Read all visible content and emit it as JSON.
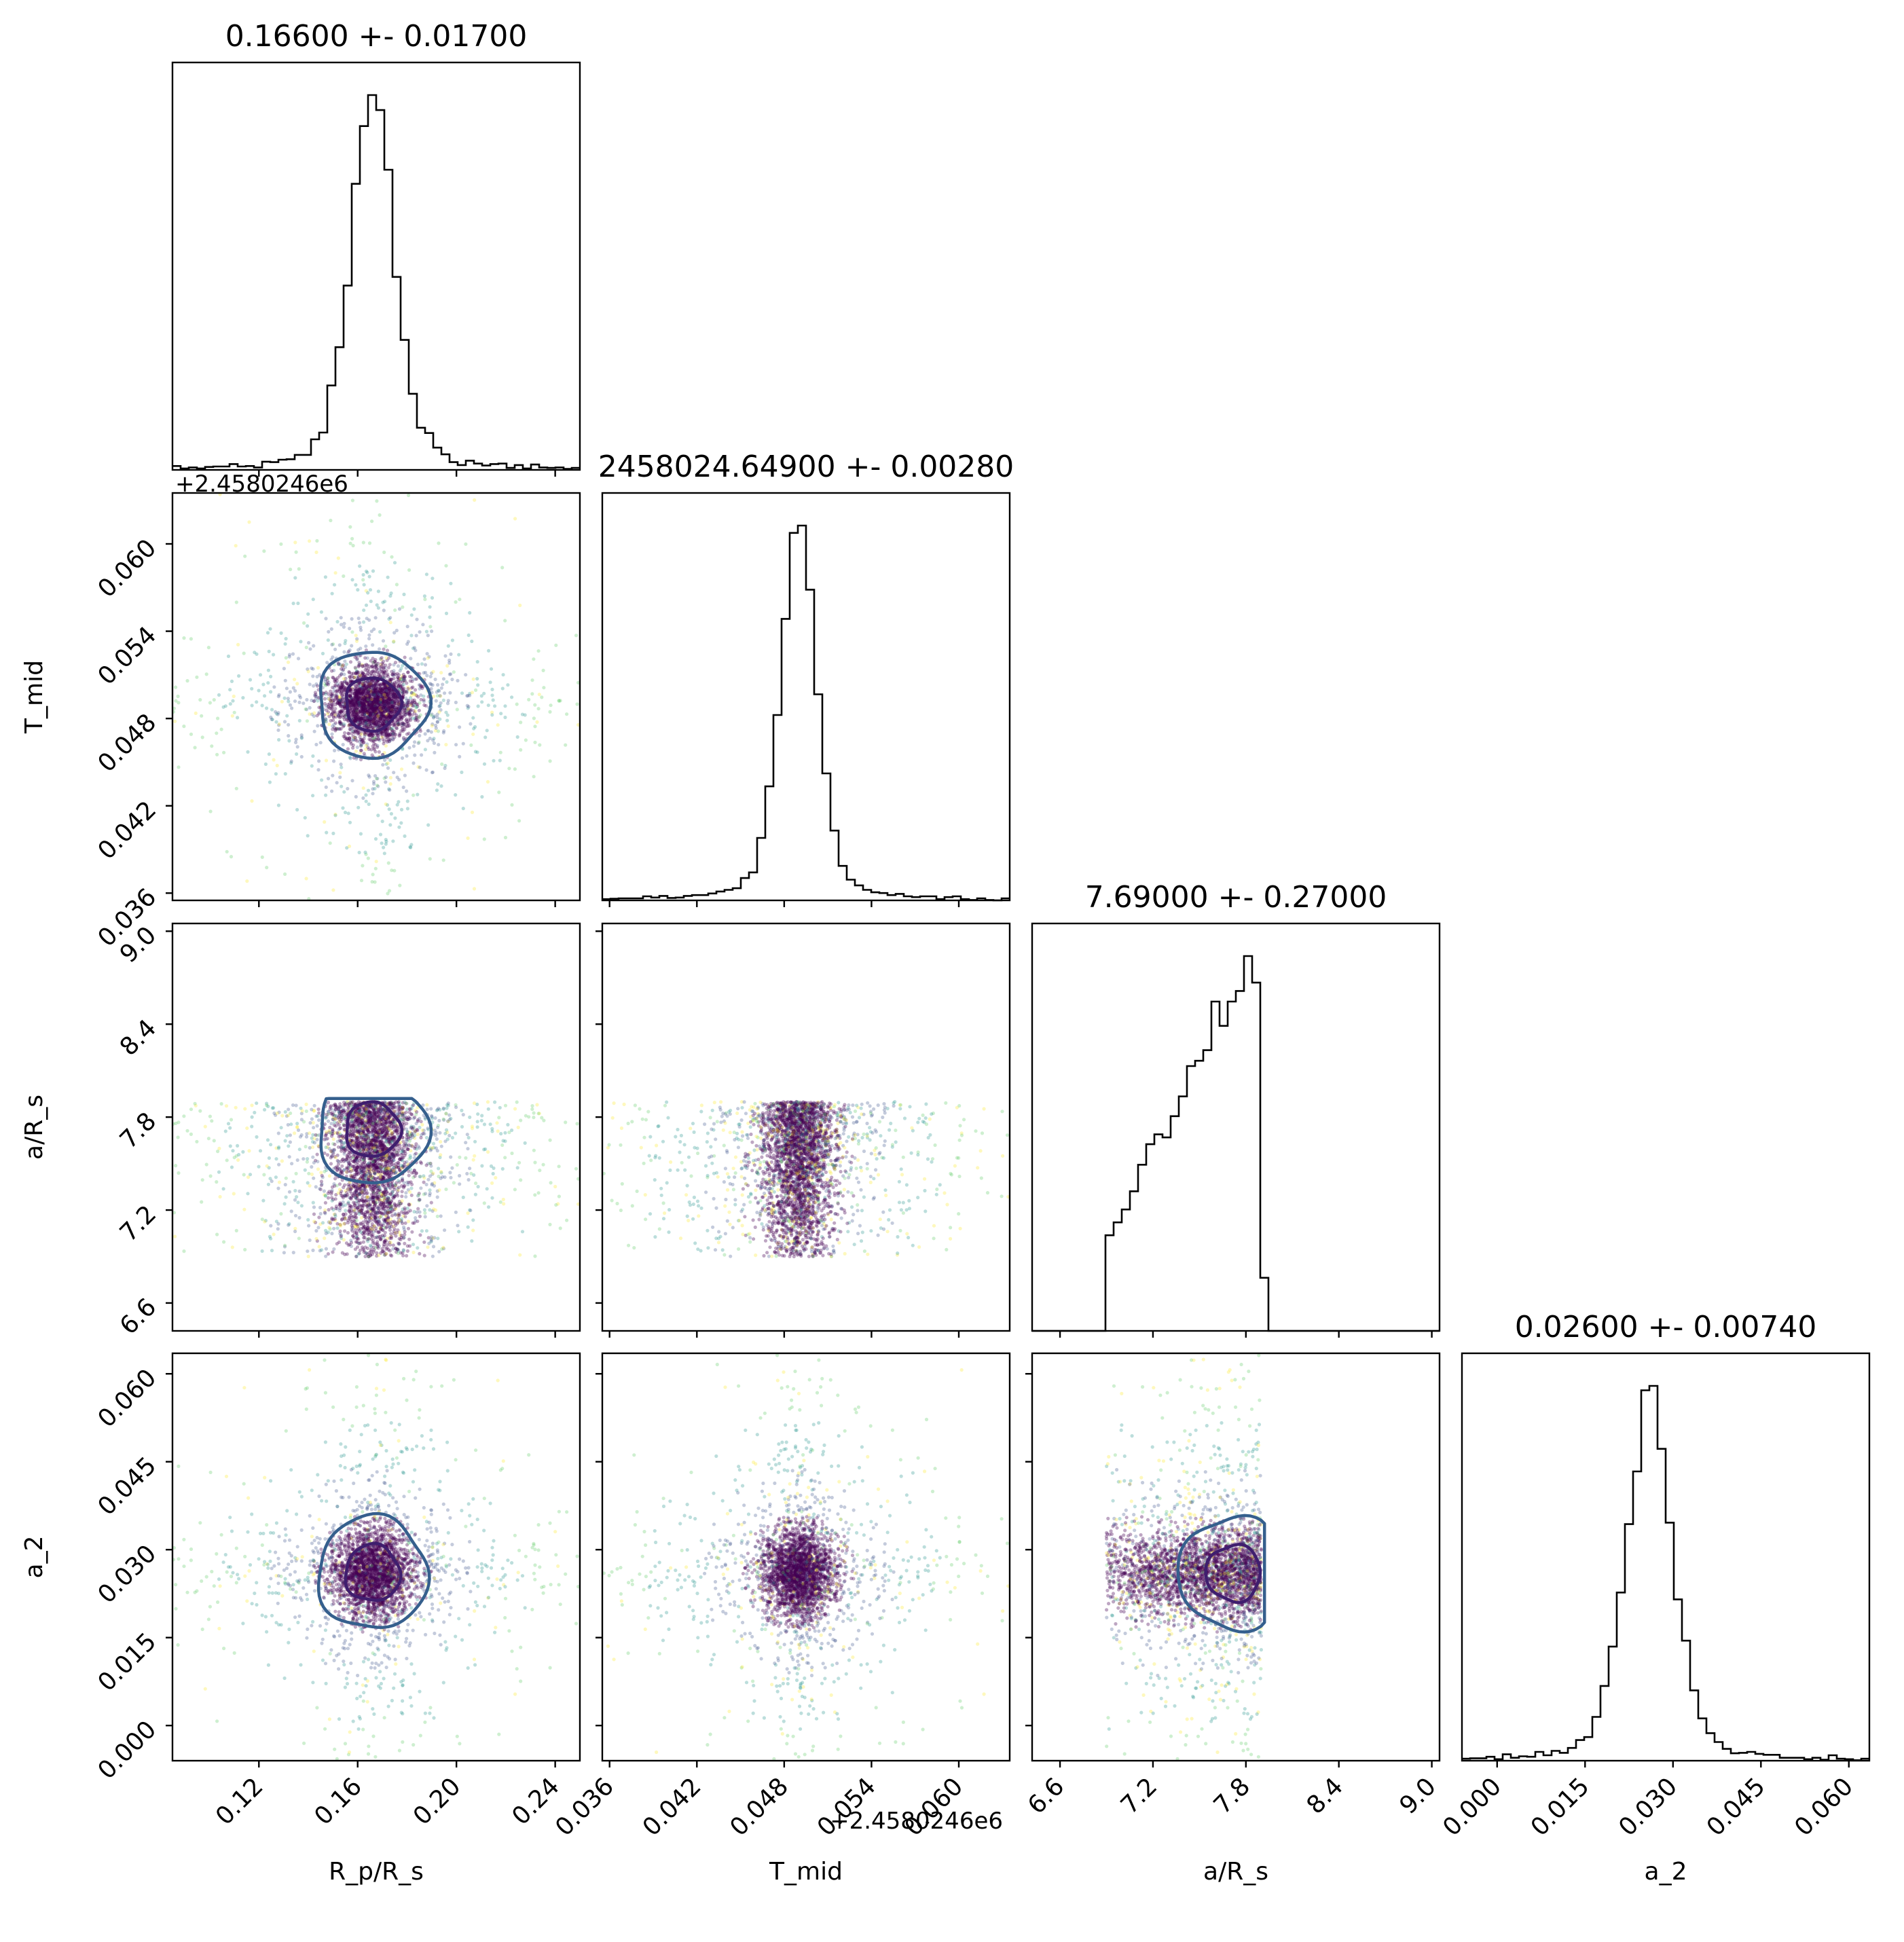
{
  "colors": {
    "inner_contour": "#3f1e6e",
    "outer_contour": "#355f8d",
    "edge_contour": "#fde725",
    "viridis": [
      "#440154",
      "#3b528b",
      "#21918c",
      "#5ec962",
      "#fde725"
    ]
  },
  "chart_data": {
    "type": "scatter",
    "subtype": "corner plot (posterior samples: 1D histograms on the diagonal, 2D scatter with density contours below)",
    "parameters": [
      {
        "key": "rp_rs",
        "label": "R_p/R_s",
        "title": "0.16600 +- 0.01700",
        "median": 0.166,
        "sigma": 0.017,
        "range": [
          0.085,
          0.25
        ],
        "ticks": [
          0.12,
          0.16,
          0.2,
          0.24
        ],
        "tick_labels": [
          "0.12",
          "0.16",
          "0.20",
          "0.24"
        ]
      },
      {
        "key": "tmid",
        "label": "T_mid",
        "title": "2458024.64900 +- 0.00280",
        "median": 2458024.649,
        "sigma": 0.0028,
        "offset_label": "+2.4580246e6",
        "range": [
          0.0355,
          0.0635
        ],
        "ticks": [
          0.036,
          0.042,
          0.048,
          0.054,
          0.06
        ],
        "tick_labels": [
          "0.036",
          "0.042",
          "0.048",
          "0.054",
          "0.060"
        ]
      },
      {
        "key": "a_rs",
        "label": "a/R_s",
        "title": "7.69000 +- 0.27000",
        "median": 7.69,
        "sigma": 0.27,
        "range": [
          6.42,
          9.05
        ],
        "ticks": [
          6.6,
          7.2,
          7.8,
          8.4,
          9.0
        ],
        "tick_labels": [
          "6.6",
          "7.2",
          "7.8",
          "8.4",
          "9.0"
        ]
      },
      {
        "key": "a2",
        "label": "a_2",
        "title": "0.02600 +- 0.00740",
        "median": 0.026,
        "sigma": 0.0074,
        "range": [
          -0.006,
          0.0635
        ],
        "ticks": [
          0.0,
          0.015,
          0.03,
          0.045,
          0.06
        ],
        "tick_labels": [
          "0.000",
          "0.015",
          "0.030",
          "0.045",
          "0.060"
        ]
      }
    ],
    "a_rs_prior_bounds": [
      6.9,
      7.9
    ],
    "diagonal_histograms": {
      "rp_rs": {
        "bins": 50,
        "peak": 0.166
      },
      "tmid": {
        "bins": 50,
        "peak": 0.049
      },
      "a_rs": {
        "bins": 50,
        "peak": 7.75,
        "shape": "rising, truncated at 7.9"
      },
      "a2": {
        "bins": 50,
        "peak": 0.026
      }
    },
    "grid": false,
    "legend": "none"
  },
  "labels": {
    "rp_rs": "R_p/R_s",
    "tmid": "T_mid",
    "a_rs": "a/R_s",
    "a2": "a_2",
    "tmid_offset": "+2.4580246e6"
  }
}
